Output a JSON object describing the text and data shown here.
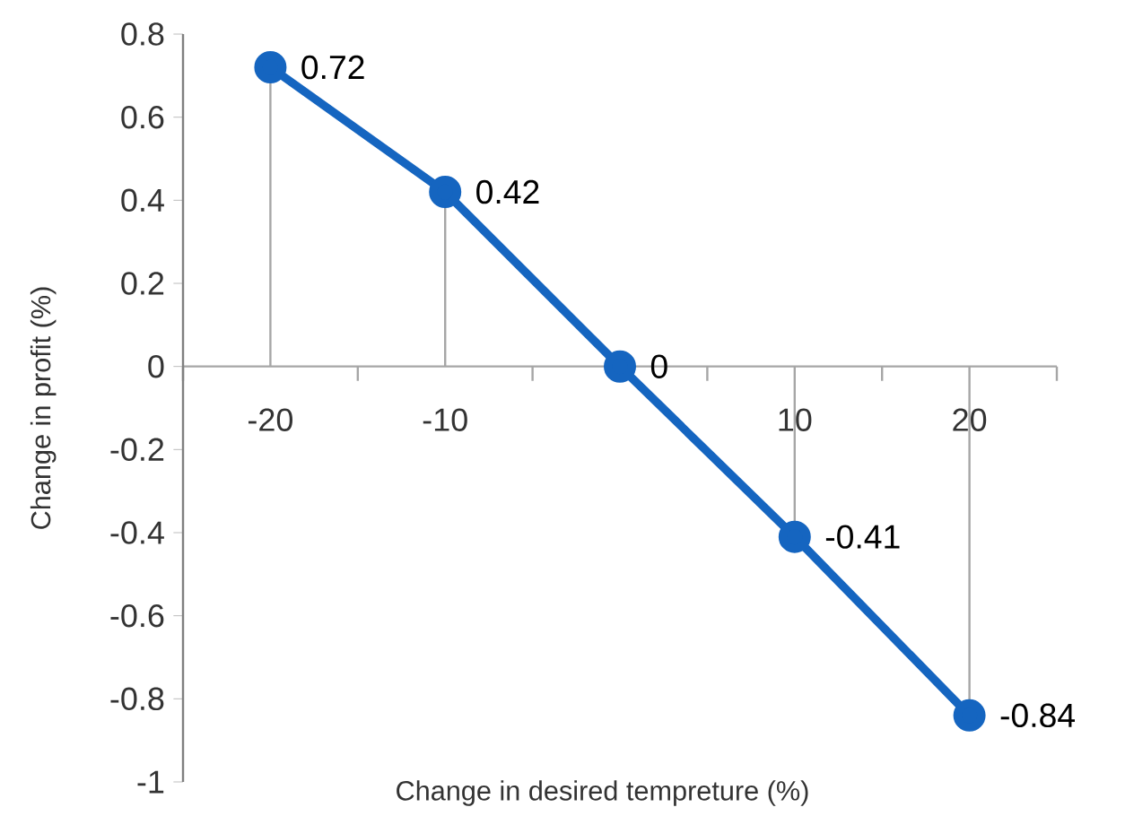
{
  "chart_data": {
    "type": "line",
    "xlabel": "Change in desired tempreture (%)",
    "ylabel": "Change in profit (%)",
    "categories": [
      "-20",
      "-10",
      null,
      "10",
      "20"
    ],
    "values": [
      0.72,
      0.42,
      0,
      -0.41,
      -0.84
    ],
    "color": "#1565c0",
    "marker": "circle",
    "data_labels": true,
    "ylim": [
      -1,
      0.8
    ],
    "yticks": [
      -1,
      -0.8,
      -0.6,
      -0.4,
      -0.2,
      0,
      0.2,
      0.4,
      0.6,
      0.8
    ]
  }
}
